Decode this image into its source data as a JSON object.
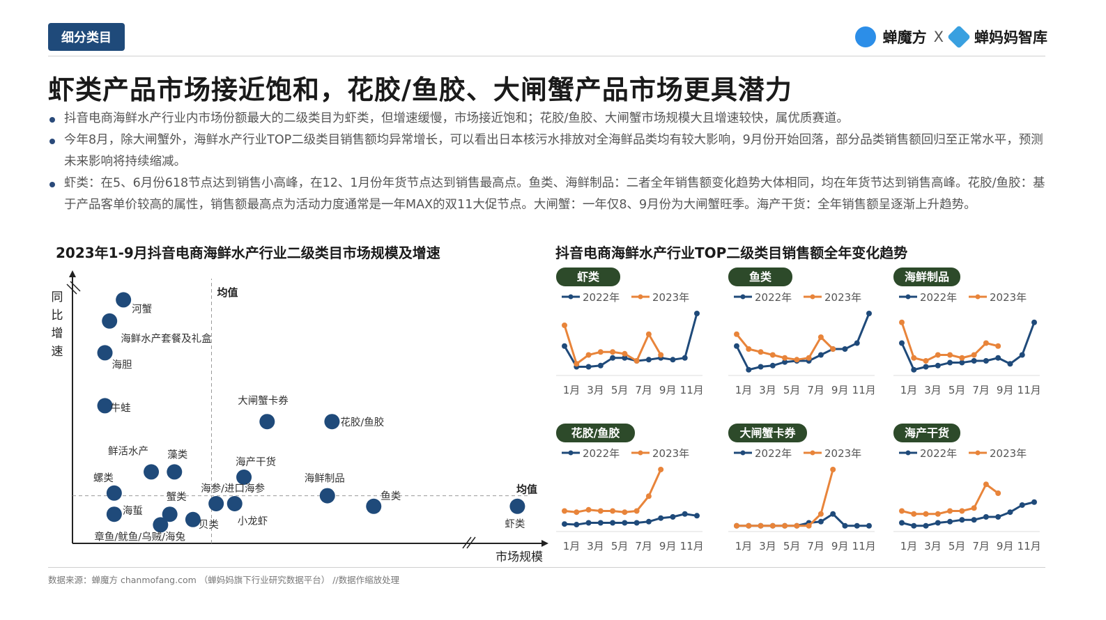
{
  "header": {
    "tag": "细分类目",
    "brand_left": "蝉魔方",
    "brand_sep": "X",
    "brand_right": "蝉妈妈智库"
  },
  "title": "虾类产品市场接近饱和，花胶/鱼胶、大闸蟹产品市场更具潜力",
  "bullets": [
    "抖音电商海鲜水产行业内市场份额最大的二级类目为虾类，但增速缓慢，市场接近饱和；花胶/鱼胶、大闸蟹市场规模大且增速较快，属优质赛道。",
    "今年8月，除大闸蟹外，海鲜水产行业TOP二级类目销售额均异常增长，可以看出日本核污水排放对全海鲜品类均有较大影响，9月份开始回落，部分品类销售额回归至正常水平，预测未来影响将持续缩减。",
    "虾类：在5、6月份618节点达到销售小高峰，在12、1月份年货节点达到销售最高点。鱼类、海鲜制品：二者全年销售额变化趋势大体相同，均在年货节达到销售高峰。花胶/鱼胶：基于产品客单价较高的属性，销售额最高点为活动力度通常是一年MAX的双11大促节点。大闸蟹：一年仅8、9月份为大闸蟹旺季。海产干货：全年销售额呈逐渐上升趋势。"
  ],
  "footer": "数据来源：蝉魔方 chanmofang.com （蝉妈妈旗下行业研究数据平台） //数据作缩放处理",
  "chart_data": [
    {
      "type": "scatter",
      "title": "2023年1-9月抖音电商海鲜水产行业二级类目市场规模及增速",
      "xlabel": "市场规模",
      "ylabel": "同比增速",
      "mean_label_x": "均值",
      "mean_label_y": "均值",
      "color": "#1f4a7a",
      "xlim": [
        0,
        100
      ],
      "ylim": [
        0,
        100
      ],
      "mean_x": 30,
      "mean_y": 18,
      "points": [
        {
          "name": "河蟹",
          "x": 11,
          "y": 92
        },
        {
          "name": "海鲜水产套餐及礼盒",
          "x": 8,
          "y": 84
        },
        {
          "name": "海胆",
          "x": 7,
          "y": 72
        },
        {
          "name": "牛蛙",
          "x": 7,
          "y": 52
        },
        {
          "name": "大闸蟹卡券",
          "x": 42,
          "y": 46
        },
        {
          "name": "花胶/鱼胶",
          "x": 56,
          "y": 46
        },
        {
          "name": "鲜活水产",
          "x": 17,
          "y": 27
        },
        {
          "name": "藻类",
          "x": 22,
          "y": 27
        },
        {
          "name": "海产干货",
          "x": 37,
          "y": 25
        },
        {
          "name": "螺类",
          "x": 9,
          "y": 19
        },
        {
          "name": "海鲜制品",
          "x": 55,
          "y": 18
        },
        {
          "name": "海参/进口海参",
          "x": 31,
          "y": 15
        },
        {
          "name": "小龙虾",
          "x": 35,
          "y": 15
        },
        {
          "name": "鱼类",
          "x": 65,
          "y": 14
        },
        {
          "name": "虾类",
          "x": 96,
          "y": 14
        },
        {
          "name": "蟹类",
          "x": 21,
          "y": 11
        },
        {
          "name": "海蜇",
          "x": 9,
          "y": 11
        },
        {
          "name": "章鱼/鱿鱼/乌贼/海兔",
          "x": 19,
          "y": 7
        },
        {
          "name": "贝类",
          "x": 26,
          "y": 9
        }
      ]
    },
    {
      "type": "line",
      "panel_title": "抖音电商海鲜水产行业TOP二级类目销售额全年变化趋势",
      "categories": [
        "1月",
        "2月",
        "3月",
        "4月",
        "5月",
        "6月",
        "7月",
        "8月",
        "9月",
        "10月",
        "11月",
        "12月"
      ],
      "tick_labels": [
        "1月",
        "3月",
        "5月",
        "7月",
        "9月",
        "11月"
      ],
      "colors": {
        "2022年": "#1f4a7a",
        "2023年": "#e8843a"
      },
      "charts": [
        {
          "title": "虾类",
          "series": [
            {
              "name": "2022年",
              "values": [
                45,
                10,
                10,
                12,
                25,
                25,
                20,
                22,
                25,
                22,
                25,
                100
              ]
            },
            {
              "name": "2023年",
              "values": [
                80,
                15,
                30,
                35,
                35,
                32,
                20,
                65,
                30
              ]
            }
          ]
        },
        {
          "title": "鱼类",
          "series": [
            {
              "name": "2022年",
              "values": [
                45,
                5,
                10,
                12,
                18,
                20,
                20,
                30,
                40,
                40,
                50,
                100
              ]
            },
            {
              "name": "2023年",
              "values": [
                65,
                40,
                35,
                30,
                25,
                22,
                25,
                60,
                40
              ]
            }
          ]
        },
        {
          "title": "海鲜制品",
          "series": [
            {
              "name": "2022年",
              "values": [
                50,
                5,
                10,
                12,
                17,
                17,
                20,
                20,
                25,
                15,
                30,
                85
              ]
            },
            {
              "name": "2023年",
              "values": [
                85,
                25,
                20,
                30,
                30,
                25,
                30,
                50,
                45
              ]
            }
          ]
        },
        {
          "title": "花胶/鱼胶",
          "series": [
            {
              "name": "2022年",
              "values": [
                8,
                7,
                10,
                10,
                10,
                10,
                10,
                12,
                18,
                20,
                25,
                22
              ]
            },
            {
              "name": "2023年",
              "values": [
                30,
                28,
                32,
                30,
                30,
                28,
                30,
                55,
                100
              ]
            }
          ]
        },
        {
          "title": "大闸蟹卡券",
          "series": [
            {
              "name": "2022年",
              "values": [
                5,
                5,
                5,
                5,
                5,
                5,
                10,
                12,
                25,
                5,
                5,
                5
              ]
            },
            {
              "name": "2023年",
              "values": [
                5,
                5,
                5,
                5,
                5,
                5,
                5,
                25,
                100
              ]
            }
          ]
        },
        {
          "title": "海产干货",
          "series": [
            {
              "name": "2022年",
              "values": [
                10,
                5,
                5,
                10,
                12,
                15,
                15,
                20,
                20,
                28,
                40,
                45
              ]
            },
            {
              "name": "2023年",
              "values": [
                30,
                25,
                25,
                25,
                30,
                30,
                35,
                75,
                60
              ]
            }
          ]
        }
      ]
    }
  ]
}
